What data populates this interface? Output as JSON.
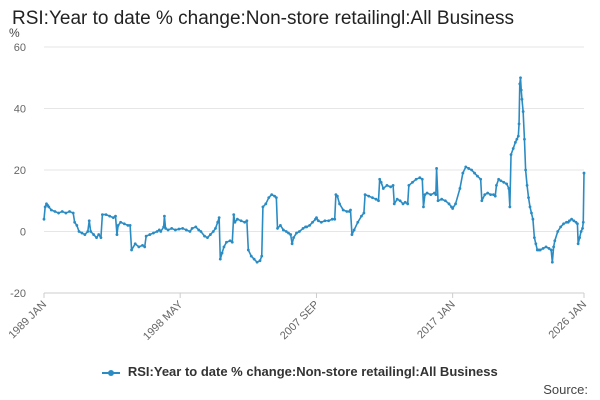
{
  "title": "RSI:Year to date % change:Non-store retailingl:All Business",
  "source_label": "Source:",
  "colors": {
    "series": "#2b8cc4",
    "grid": "#e6e6e6",
    "axis": "#cccccc"
  },
  "chart_data": {
    "type": "line",
    "title": "RSI:Year to date % change:Non-store retailingl:All Business",
    "ylabel": "%",
    "ylim": [
      -20,
      60
    ],
    "yticks": [
      -20,
      0,
      20,
      40,
      60
    ],
    "xlim": [
      1989.0,
      2026.0
    ],
    "xticks": [
      {
        "label": "1989 JAN",
        "x": 1989.0
      },
      {
        "label": "1998 MAY",
        "x": 1998.33
      },
      {
        "label": "2007 SEP",
        "x": 2007.67
      },
      {
        "label": "2017 JAN",
        "x": 2017.0
      },
      {
        "label": "2026 JAN",
        "x": 2026.0
      }
    ],
    "grid": true,
    "legend_position": "bottom",
    "series": [
      {
        "name": "RSI:Year to date % change:Non-store retailingl:All Business",
        "points": [
          [
            1989.0,
            4
          ],
          [
            1989.08,
            8
          ],
          [
            1989.17,
            9
          ],
          [
            1989.25,
            8.5
          ],
          [
            1989.33,
            8
          ],
          [
            1989.5,
            7
          ],
          [
            1989.75,
            6.5
          ],
          [
            1990.0,
            6
          ],
          [
            1990.25,
            6.5
          ],
          [
            1990.5,
            6
          ],
          [
            1990.75,
            6.5
          ],
          [
            1991.0,
            6
          ],
          [
            1991.1,
            3
          ],
          [
            1991.25,
            2
          ],
          [
            1991.4,
            0
          ],
          [
            1991.6,
            -0.5
          ],
          [
            1991.8,
            -1
          ],
          [
            1992.0,
            0
          ],
          [
            1992.1,
            3.5
          ],
          [
            1992.2,
            0
          ],
          [
            1992.4,
            -1
          ],
          [
            1992.6,
            -2
          ],
          [
            1992.75,
            -1
          ],
          [
            1992.9,
            -2
          ],
          [
            1993.0,
            5.5
          ],
          [
            1993.25,
            5.5
          ],
          [
            1993.5,
            5
          ],
          [
            1993.75,
            4.5
          ],
          [
            1993.9,
            5
          ],
          [
            1994.0,
            -1
          ],
          [
            1994.08,
            2
          ],
          [
            1994.25,
            3
          ],
          [
            1994.5,
            2.5
          ],
          [
            1994.75,
            2
          ],
          [
            1994.9,
            2
          ],
          [
            1995.0,
            -6
          ],
          [
            1995.25,
            -4
          ],
          [
            1995.5,
            -5
          ],
          [
            1995.75,
            -4.5
          ],
          [
            1995.9,
            -5
          ],
          [
            1996.0,
            -1.5
          ],
          [
            1996.25,
            -1
          ],
          [
            1996.5,
            -0.5
          ],
          [
            1996.75,
            0
          ],
          [
            1996.9,
            0.5
          ],
          [
            1997.0,
            0
          ],
          [
            1997.2,
            1.5
          ],
          [
            1997.25,
            5
          ],
          [
            1997.33,
            1
          ],
          [
            1997.5,
            0.5
          ],
          [
            1997.75,
            1
          ],
          [
            1998.0,
            0.5
          ],
          [
            1998.25,
            0.8
          ],
          [
            1998.5,
            1
          ],
          [
            1998.75,
            0.5
          ],
          [
            1999.0,
            0
          ],
          [
            1999.15,
            1
          ],
          [
            1999.4,
            1.5
          ],
          [
            1999.6,
            0.5
          ],
          [
            1999.75,
            0
          ],
          [
            2000.0,
            -1.5
          ],
          [
            2000.2,
            -2
          ],
          [
            2000.4,
            -1
          ],
          [
            2000.6,
            0
          ],
          [
            2000.75,
            1
          ],
          [
            2000.9,
            3
          ],
          [
            2001.0,
            4.5
          ],
          [
            2001.08,
            -9
          ],
          [
            2001.2,
            -7
          ],
          [
            2001.33,
            -5
          ],
          [
            2001.5,
            -3.5
          ],
          [
            2001.75,
            -3
          ],
          [
            2001.9,
            -3.5
          ],
          [
            2002.0,
            5.5
          ],
          [
            2002.08,
            3
          ],
          [
            2002.25,
            4
          ],
          [
            2002.5,
            3.5
          ],
          [
            2002.75,
            3
          ],
          [
            2002.9,
            3.5
          ],
          [
            2003.0,
            -6
          ],
          [
            2003.2,
            -8
          ],
          [
            2003.4,
            -9
          ],
          [
            2003.6,
            -10
          ],
          [
            2003.8,
            -9.5
          ],
          [
            2003.92,
            -8
          ],
          [
            2004.0,
            8
          ],
          [
            2004.2,
            9
          ],
          [
            2004.4,
            11
          ],
          [
            2004.6,
            12
          ],
          [
            2004.8,
            11.5
          ],
          [
            2004.92,
            11
          ],
          [
            2005.0,
            1
          ],
          [
            2005.2,
            2
          ],
          [
            2005.4,
            0.5
          ],
          [
            2005.6,
            0
          ],
          [
            2005.75,
            -0.5
          ],
          [
            2005.9,
            -1
          ],
          [
            2006.0,
            -4
          ],
          [
            2006.1,
            -2
          ],
          [
            2006.3,
            -0.5
          ],
          [
            2006.5,
            0
          ],
          [
            2006.75,
            1
          ],
          [
            2006.92,
            1.5
          ],
          [
            2007.0,
            1.5
          ],
          [
            2007.2,
            2
          ],
          [
            2007.4,
            3
          ],
          [
            2007.6,
            4
          ],
          [
            2007.67,
            4.5
          ],
          [
            2007.8,
            3.5
          ],
          [
            2008.0,
            3
          ],
          [
            2008.25,
            3.5
          ],
          [
            2008.5,
            3.5
          ],
          [
            2008.75,
            4
          ],
          [
            2008.92,
            4
          ],
          [
            2009.0,
            12
          ],
          [
            2009.1,
            11.5
          ],
          [
            2009.25,
            9
          ],
          [
            2009.5,
            7
          ],
          [
            2009.75,
            6.5
          ],
          [
            2009.92,
            6.5
          ],
          [
            2010.0,
            7
          ],
          [
            2010.1,
            -1
          ],
          [
            2010.25,
            0.5
          ],
          [
            2010.5,
            3
          ],
          [
            2010.75,
            5
          ],
          [
            2010.92,
            6
          ],
          [
            2011.0,
            12
          ],
          [
            2011.25,
            11.5
          ],
          [
            2011.5,
            11
          ],
          [
            2011.75,
            10.5
          ],
          [
            2011.92,
            10
          ],
          [
            2012.0,
            17
          ],
          [
            2012.1,
            16
          ],
          [
            2012.25,
            14
          ],
          [
            2012.5,
            15
          ],
          [
            2012.75,
            14.5
          ],
          [
            2012.92,
            15
          ],
          [
            2013.0,
            9
          ],
          [
            2013.2,
            10.5
          ],
          [
            2013.4,
            10
          ],
          [
            2013.6,
            9
          ],
          [
            2013.75,
            9.5
          ],
          [
            2013.92,
            9
          ],
          [
            2014.0,
            15
          ],
          [
            2014.25,
            16
          ],
          [
            2014.5,
            17
          ],
          [
            2014.75,
            17.5
          ],
          [
            2014.92,
            17
          ],
          [
            2015.0,
            8
          ],
          [
            2015.1,
            12
          ],
          [
            2015.25,
            12.5
          ],
          [
            2015.5,
            12
          ],
          [
            2015.75,
            12.5
          ],
          [
            2015.85,
            12
          ],
          [
            2015.9,
            20.5
          ],
          [
            2016.0,
            10
          ],
          [
            2016.25,
            10.5
          ],
          [
            2016.5,
            10
          ],
          [
            2016.75,
            9
          ],
          [
            2016.92,
            8
          ],
          [
            2017.0,
            7.5
          ],
          [
            2017.2,
            9
          ],
          [
            2017.5,
            14
          ],
          [
            2017.7,
            19
          ],
          [
            2017.9,
            21
          ],
          [
            2018.1,
            20.5
          ],
          [
            2018.3,
            20
          ],
          [
            2018.5,
            19
          ],
          [
            2018.7,
            18
          ],
          [
            2018.92,
            17
          ],
          [
            2019.0,
            10
          ],
          [
            2019.2,
            12
          ],
          [
            2019.4,
            12.5
          ],
          [
            2019.6,
            12
          ],
          [
            2019.8,
            12
          ],
          [
            2019.92,
            11.5
          ],
          [
            2020.0,
            15
          ],
          [
            2020.15,
            17
          ],
          [
            2020.3,
            16.5
          ],
          [
            2020.5,
            16
          ],
          [
            2020.7,
            15.5
          ],
          [
            2020.85,
            14
          ],
          [
            2020.92,
            8
          ],
          [
            2021.0,
            25
          ],
          [
            2021.15,
            27
          ],
          [
            2021.3,
            29
          ],
          [
            2021.4,
            30
          ],
          [
            2021.5,
            31
          ],
          [
            2021.55,
            35
          ],
          [
            2021.6,
            48
          ],
          [
            2021.65,
            50
          ],
          [
            2021.7,
            46
          ],
          [
            2021.75,
            43
          ],
          [
            2021.83,
            39
          ],
          [
            2021.92,
            30
          ],
          [
            2022.0,
            20
          ],
          [
            2022.1,
            15
          ],
          [
            2022.2,
            11
          ],
          [
            2022.3,
            8
          ],
          [
            2022.4,
            6
          ],
          [
            2022.5,
            4
          ],
          [
            2022.6,
            -2
          ],
          [
            2022.7,
            -4
          ],
          [
            2022.8,
            -6
          ],
          [
            2022.9,
            -6
          ],
          [
            2023.0,
            -6
          ],
          [
            2023.2,
            -5.5
          ],
          [
            2023.4,
            -5
          ],
          [
            2023.6,
            -5.5
          ],
          [
            2023.75,
            -6
          ],
          [
            2023.83,
            -10
          ],
          [
            2023.92,
            -5
          ],
          [
            2024.0,
            -3
          ],
          [
            2024.2,
            0
          ],
          [
            2024.4,
            1.5
          ],
          [
            2024.6,
            2.5
          ],
          [
            2024.8,
            3
          ],
          [
            2024.92,
            3
          ],
          [
            2025.0,
            3.5
          ],
          [
            2025.15,
            4
          ],
          [
            2025.3,
            3.5
          ],
          [
            2025.45,
            3
          ],
          [
            2025.55,
            2.5
          ],
          [
            2025.6,
            -4
          ],
          [
            2025.7,
            -2
          ],
          [
            2025.8,
            0
          ],
          [
            2025.9,
            1
          ],
          [
            2025.95,
            3
          ],
          [
            2026.0,
            19
          ]
        ]
      }
    ]
  }
}
